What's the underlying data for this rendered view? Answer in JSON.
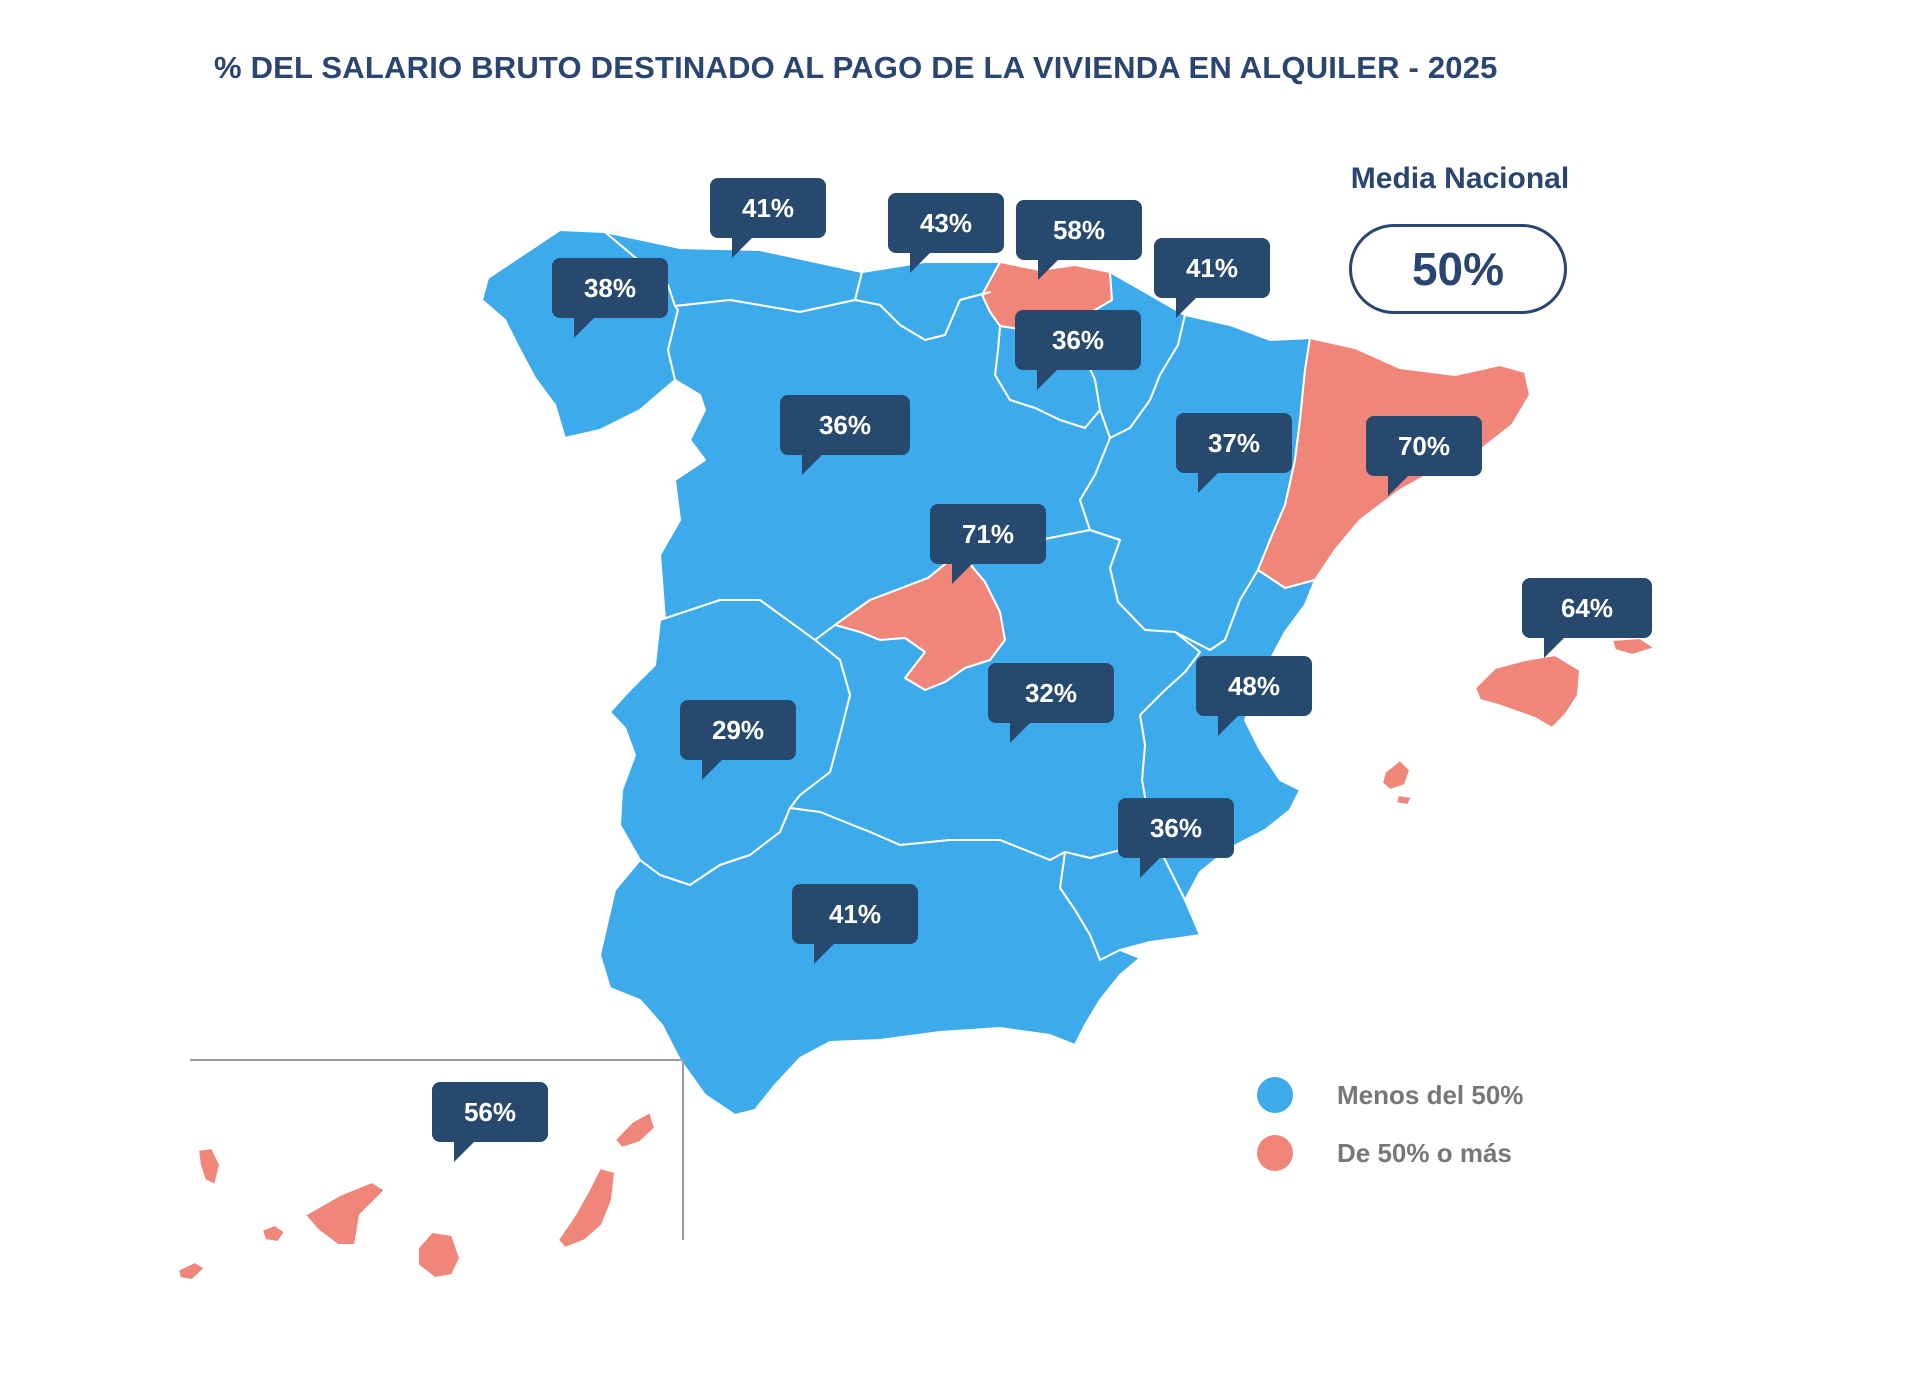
{
  "title": "% DEL SALARIO BRUTO DESTINADO AL PAGO DE LA VIVIENDA EN ALQUILER - 2025",
  "colors": {
    "below": "#3dabeb",
    "above": "#f0857a",
    "callout": "#27496d",
    "title": "#2a4570",
    "legend_text": "#777777"
  },
  "threshold": 50,
  "media": {
    "label": "Media Nacional",
    "value": "50%"
  },
  "legend": {
    "below_label": "Menos del 50%",
    "above_label": "De 50% o más"
  },
  "regions": [
    {
      "id": "galicia",
      "value": "38%",
      "pct": 38
    },
    {
      "id": "asturias",
      "value": "41%",
      "pct": 41
    },
    {
      "id": "cantabria",
      "value": "43%",
      "pct": 43
    },
    {
      "id": "pais-vasco",
      "value": "58%",
      "pct": 58
    },
    {
      "id": "navarra",
      "value": "41%",
      "pct": 41
    },
    {
      "id": "la-rioja",
      "value": "36%",
      "pct": 36
    },
    {
      "id": "castilla-leon",
      "value": "36%",
      "pct": 36
    },
    {
      "id": "aragon",
      "value": "37%",
      "pct": 37
    },
    {
      "id": "cataluna",
      "value": "70%",
      "pct": 70
    },
    {
      "id": "madrid",
      "value": "71%",
      "pct": 71
    },
    {
      "id": "baleares",
      "value": "64%",
      "pct": 64
    },
    {
      "id": "castilla-la-mancha",
      "value": "32%",
      "pct": 32
    },
    {
      "id": "valencia",
      "value": "48%",
      "pct": 48
    },
    {
      "id": "extremadura",
      "value": "29%",
      "pct": 29
    },
    {
      "id": "murcia",
      "value": "36%",
      "pct": 36
    },
    {
      "id": "andalucia",
      "value": "41%",
      "pct": 41
    },
    {
      "id": "canarias",
      "value": "56%",
      "pct": 56
    }
  ]
}
